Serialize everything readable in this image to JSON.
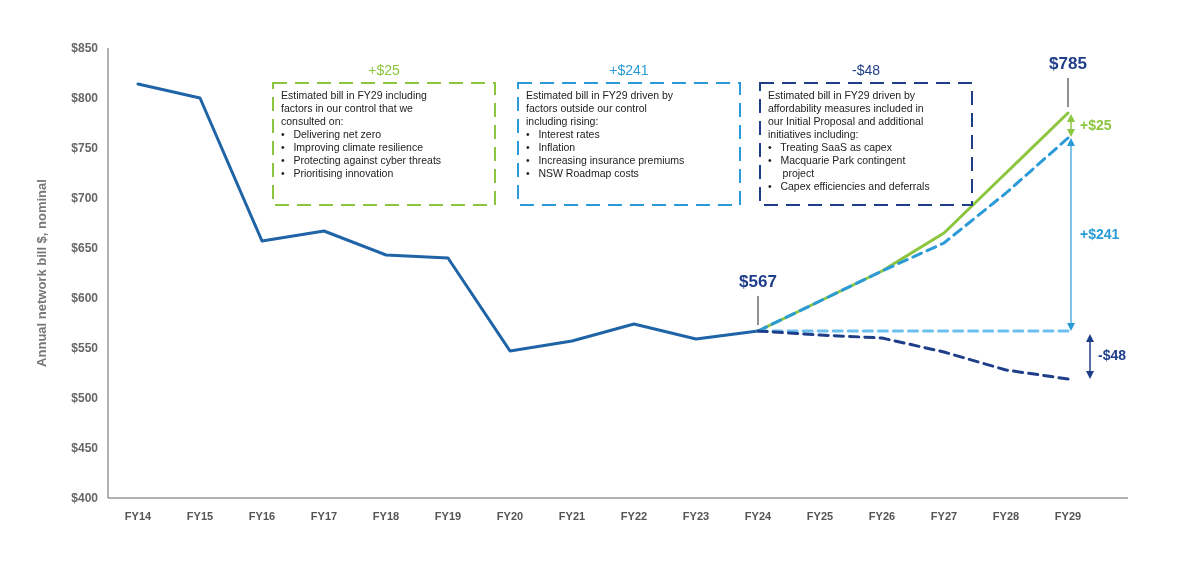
{
  "chart_data": {
    "type": "line",
    "ylabel": "Annual network bill $, nominal",
    "categories": [
      "FY14",
      "FY15",
      "FY16",
      "FY17",
      "FY18",
      "FY19",
      "FY20",
      "FY21",
      "FY22",
      "FY23",
      "FY24",
      "FY25",
      "FY26",
      "FY27",
      "FY28",
      "FY29"
    ],
    "ylim": [
      400,
      850
    ],
    "yticks": [
      {
        "value": 400,
        "label": "$400"
      },
      {
        "value": 450,
        "label": "$450"
      },
      {
        "value": 500,
        "label": "$500"
      },
      {
        "value": 550,
        "label": "$550"
      },
      {
        "value": 600,
        "label": "$600"
      },
      {
        "value": 650,
        "label": "$650"
      },
      {
        "value": 700,
        "label": "$700"
      },
      {
        "value": 750,
        "label": "$750"
      },
      {
        "value": 800,
        "label": "$800"
      },
      {
        "value": 850,
        "label": "$850"
      }
    ],
    "grid": false,
    "marker": "none",
    "series": [
      {
        "color": "#1f64a6",
        "line_style": "solid",
        "values": [
          814,
          800,
          657,
          667,
          643,
          640,
          547,
          557,
          574,
          559,
          567,
          null,
          null,
          null,
          null,
          null
        ]
      },
      {
        "color": "#8cc63f",
        "line_style": "solid",
        "values": [
          null,
          null,
          null,
          null,
          null,
          null,
          null,
          null,
          null,
          null,
          567,
          597,
          627,
          665,
          725,
          785
        ]
      },
      {
        "color": "#2b9bd8",
        "line_style": "dashed",
        "values": [
          null,
          null,
          null,
          null,
          null,
          null,
          null,
          null,
          null,
          null,
          567,
          597,
          627,
          655,
          705,
          760
        ]
      },
      {
        "color": "#6cc0ee",
        "line_style": "dashed",
        "values": [
          null,
          null,
          null,
          null,
          null,
          null,
          null,
          null,
          null,
          null,
          567,
          567,
          567,
          567,
          567,
          567
        ]
      },
      {
        "color": "#1f3e8a",
        "line_style": "dashed",
        "values": [
          null,
          null,
          null,
          null,
          null,
          null,
          null,
          null,
          null,
          null,
          567,
          563,
          560,
          546,
          528,
          519
        ]
      }
    ],
    "annotations": [
      "+$25\nEstimated bill in FY29 including\nfactors in our control that we\nconsulted on:\n•   Delivering net zero\n•   Improving climate resilience\n•   Protecting against cyber threats\n•   Prioritising innovation",
      "+$241\nEstimated bill in FY29 driven by\nfactors outside our control\nincluding rising:\n•   Interest rates\n•   Inflation\n•   Increasing insurance premiums\n•   NSW Roadmap costs",
      "-$48\nEstimated bill in FY29 driven by\naffordability measures included in\nour Initial Proposal and additional\ninitiatives including:\n•   Treating SaaS as capex\n•   Macquarie Park contingent\n     project\n•   Capex efficiencies and deferrals",
      {
        "text": "$567",
        "x": "FY24",
        "y": 567
      },
      {
        "text": "$785",
        "x": "FY29",
        "y": 785
      },
      "+$25",
      "+$241",
      "-$48"
    ]
  }
}
